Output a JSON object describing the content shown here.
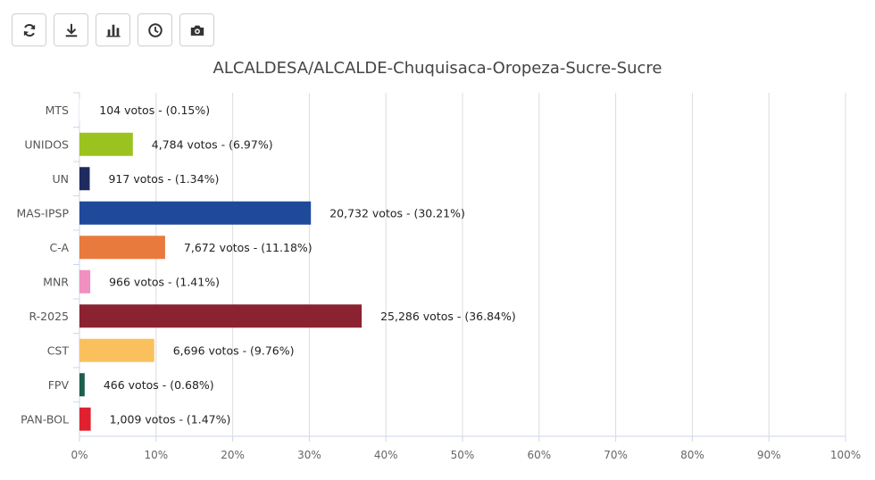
{
  "toolbar": {
    "buttons": [
      {
        "name": "refresh-icon"
      },
      {
        "name": "download-icon"
      },
      {
        "name": "bar-chart-icon"
      },
      {
        "name": "clock-icon"
      },
      {
        "name": "camera-icon"
      }
    ]
  },
  "chart_data": {
    "type": "bar",
    "orientation": "horizontal",
    "title": "ALCALDESA/ALCALDE-Chuquisaca-Oropeza-Sucre-Sucre",
    "categories": [
      "MTS",
      "UNIDOS",
      "UN",
      "MAS-IPSP",
      "C-A",
      "MNR",
      "R-2025",
      "CST",
      "FPV",
      "PAN-BOL"
    ],
    "values": [
      0.15,
      6.97,
      1.34,
      30.21,
      11.18,
      1.41,
      36.84,
      9.76,
      0.68,
      1.47
    ],
    "data_labels": [
      "104 votos - (0.15%)",
      "4,784 votos - (6.97%)",
      "917 votos - (1.34%)",
      "20,732 votos - (30.21%)",
      "7,672 votos - (11.18%)",
      "966 votos - (1.41%)",
      "25,286 votos - (36.84%)",
      "6,696 votos - (9.76%)",
      "466 votos - (0.68%)",
      "1,009 votos - (1.47%)"
    ],
    "colors": [
      "#ffffff",
      "#9bc31f",
      "#1f2b5e",
      "#1f4a9c",
      "#e87a3e",
      "#f08fc0",
      "#8b2232",
      "#fbc05e",
      "#1d5e4e",
      "#e0202e"
    ],
    "xlim": [
      0,
      100
    ],
    "x_ticks": [
      "0%",
      "10%",
      "20%",
      "30%",
      "40%",
      "50%",
      "60%",
      "70%",
      "80%",
      "90%",
      "100%"
    ],
    "grid": true,
    "legend": "none"
  }
}
